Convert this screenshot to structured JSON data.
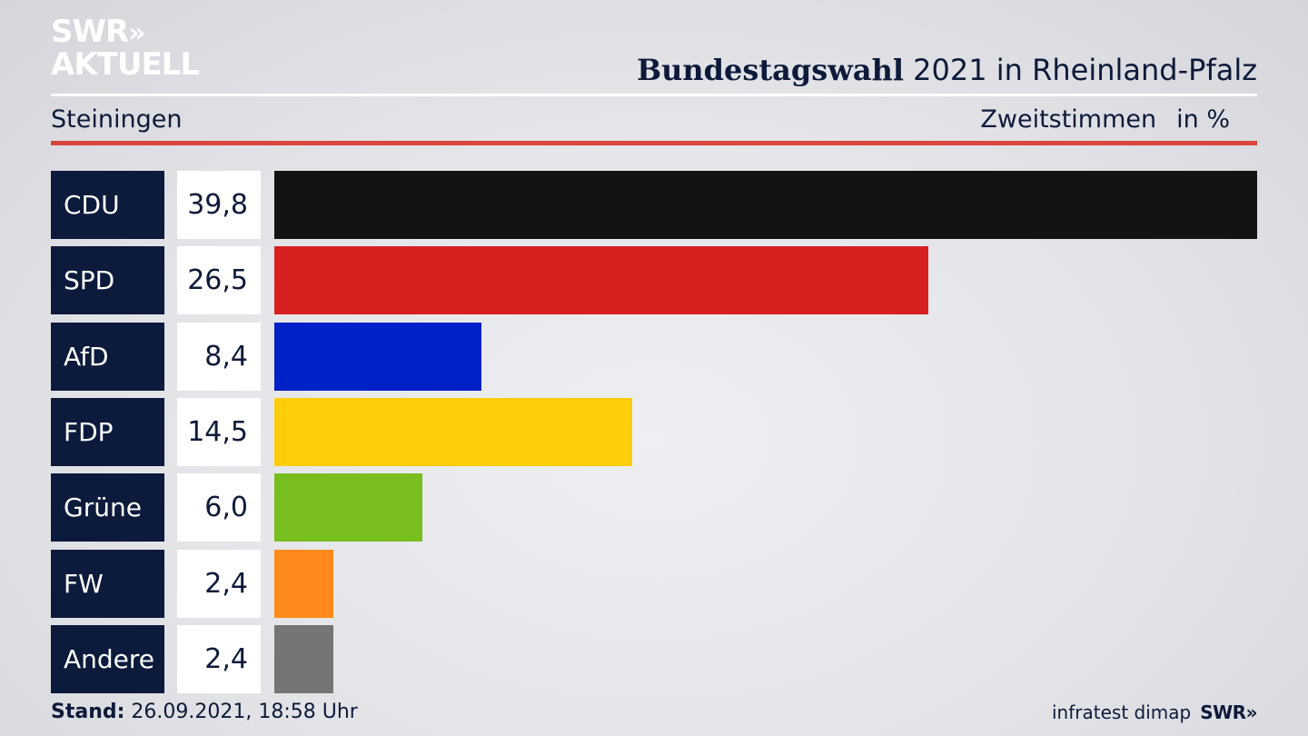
{
  "logo": {
    "line1": "SWR",
    "chevrons": "»",
    "line2": "AKTUELL"
  },
  "header": {
    "title_bold": "Bundestagswahl",
    "title_rest": "2021 in Rheinland-Pfalz",
    "location": "Steiningen",
    "measure": "Zweitstimmen",
    "unit": "in %"
  },
  "chart_data": {
    "type": "bar",
    "orientation": "horizontal",
    "categories": [
      "CDU",
      "SPD",
      "AfD",
      "FDP",
      "Grüne",
      "FW",
      "Andere"
    ],
    "values": [
      39.8,
      26.5,
      8.4,
      14.5,
      6.0,
      2.4,
      2.4
    ],
    "value_labels": [
      "39,8",
      "26,5",
      "8,4",
      "14,5",
      "6,0",
      "2,4",
      "2,4"
    ],
    "colors": [
      "#131313",
      "#d7201f",
      "#0021c8",
      "#fecd0a",
      "#78be1e",
      "#fd8a1a",
      "#757575"
    ],
    "xlim": [
      0,
      39.8
    ],
    "grid": false,
    "legend": "none"
  },
  "footer": {
    "stand_label": "Stand:",
    "stand_value": "26.09.2021, 18:58 Uhr",
    "source": "infratest dimap",
    "brand": "SWR",
    "brand_chevrons": "»"
  },
  "colors": {
    "navy": "#0c1a3c",
    "rule_red": "#d9463b"
  }
}
